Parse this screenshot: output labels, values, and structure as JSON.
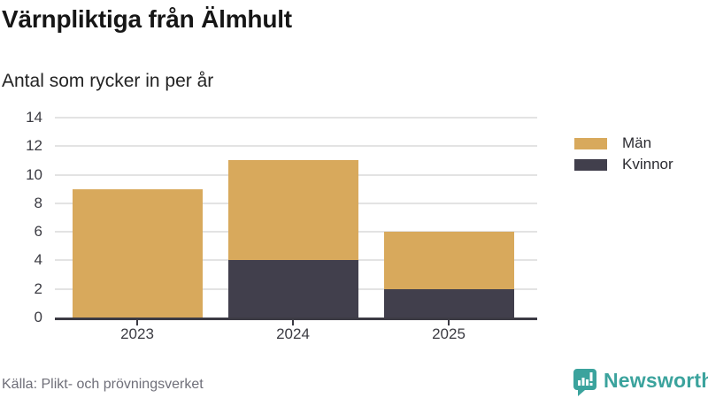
{
  "header": {
    "title": "Värnpliktiga från Älmhult",
    "subtitle": "Antal som rycker in per år"
  },
  "chart_data": {
    "type": "bar",
    "stacked": true,
    "categories": [
      "2023",
      "2024",
      "2025"
    ],
    "series": [
      {
        "name": "Män",
        "color": "#D8A95C",
        "values": [
          9,
          7,
          4
        ]
      },
      {
        "name": "Kvinnor",
        "color": "#413F4C",
        "values": [
          0,
          4,
          2
        ]
      }
    ],
    "totals": [
      9,
      11,
      6
    ],
    "title": "Värnpliktiga från Älmhult",
    "subtitle": "Antal som rycker in per år",
    "xlabel": "",
    "ylabel": "",
    "ylim": [
      0,
      14
    ],
    "yticks": [
      0,
      2,
      4,
      6,
      8,
      10,
      12,
      14
    ],
    "grid": true,
    "legend_position": "right",
    "axis_color": "#3C3B44",
    "grid_color": "#E3E3E3",
    "tick_label_color": "#3B3B42"
  },
  "footer": {
    "source": "Källa: Plikt- och prövningsverket",
    "brand": "Newsworthy",
    "brand_color": "#3BA39D"
  }
}
